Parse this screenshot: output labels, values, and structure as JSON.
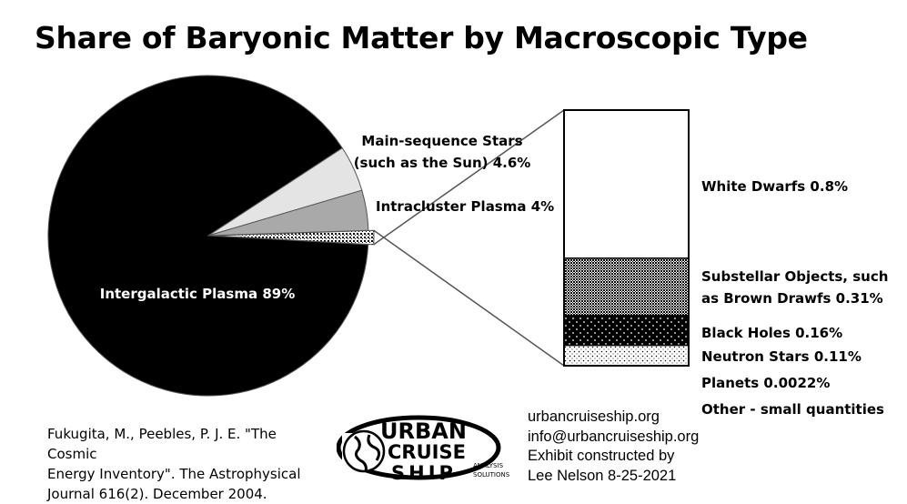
{
  "chart_data": {
    "type": "pie",
    "title": "Share of Baryonic Matter by Macroscopic Type",
    "pie": {
      "slices": [
        {
          "label": "Intergalactic Plasma 89%",
          "value": 89,
          "color": "#000000"
        },
        {
          "label": "Main-sequence Stars (such as the Sun) 4.6%",
          "label_lines": [
            "Main-sequence Stars",
            "(such as the Sun) 4.6%"
          ],
          "value": 4.6,
          "color": "#e4e4e4"
        },
        {
          "label": "Intracluster Plasma 4%",
          "value": 4,
          "color": "#a9a9a9"
        },
        {
          "label": "Other",
          "value": 1.4,
          "color": "pattern",
          "exploded": true
        }
      ]
    },
    "breakdown": {
      "segments": [
        {
          "label": "White Dwarfs 0.8%",
          "value": 0.8,
          "pattern": "white"
        },
        {
          "label_lines": [
            "Substellar Objects, such",
            "as Brown Drawfs 0.31%"
          ],
          "label": "Substellar Objects, such as Brown Drawfs 0.31%",
          "value": 0.31,
          "pattern": "dense-dots"
        },
        {
          "label": "Black Holes 0.16%",
          "value": 0.16,
          "pattern": "black-white-dots"
        },
        {
          "label": "Neutron Stars 0.11%",
          "value": 0.11,
          "pattern": "sparse-dots"
        }
      ],
      "extra_labels": [
        "Planets 0.0022%",
        "Other - small quantities"
      ]
    }
  },
  "citation": {
    "lines": [
      "Fukugita, M., Peebles, P. J. E. \"The Cosmic",
      "Energy Inventory\". The Astrophysical",
      "Journal 616(2). December 2004."
    ]
  },
  "logo": {
    "word1": "URBAN",
    "word2": "CRUISE",
    "word3": "SHIP",
    "tag1": "ANALYSIS",
    "tag2": "SOLUTIONS"
  },
  "contact": {
    "lines": [
      "urbancruiseship.org",
      "info@urbancruiseship.org",
      "Exhibit constructed by",
      "Lee Nelson 8-25-2021"
    ]
  }
}
